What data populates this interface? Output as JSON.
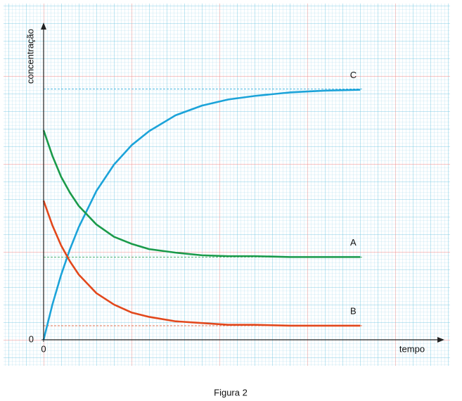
{
  "chart_data": {
    "type": "line",
    "y_label": "concentração",
    "x_label": "tempo",
    "caption": "Figura 2",
    "x": [
      0,
      1,
      2,
      3,
      4,
      6,
      8,
      10,
      12,
      15,
      18,
      21,
      24,
      28,
      32,
      36
    ],
    "series": [
      {
        "name": "C",
        "color": "#1ba3d9",
        "values": [
          0,
          4.0,
          7.4,
          10.3,
          12.8,
          16.9,
          19.9,
          22.1,
          23.7,
          25.5,
          26.6,
          27.3,
          27.7,
          28.1,
          28.3,
          28.4
        ]
      },
      {
        "name": "A",
        "color": "#1a9a4a",
        "values": [
          23.8,
          20.9,
          18.5,
          16.7,
          15.2,
          13.1,
          11.7,
          10.9,
          10.3,
          9.9,
          9.6,
          9.5,
          9.5,
          9.4,
          9.4,
          9.4
        ]
      },
      {
        "name": "B",
        "color": "#e2481c",
        "values": [
          15.8,
          13.0,
          10.7,
          8.9,
          7.4,
          5.3,
          4.0,
          3.1,
          2.6,
          2.1,
          1.9,
          1.7,
          1.7,
          1.6,
          1.6,
          1.6
        ]
      }
    ],
    "asymptotes": [
      28.5,
      9.4,
      1.6
    ],
    "xlim": [
      0,
      45.4
    ],
    "ylim": [
      0,
      36.2
    ],
    "xticks": [
      0
    ],
    "yticks": [
      0
    ],
    "grid": true
  }
}
